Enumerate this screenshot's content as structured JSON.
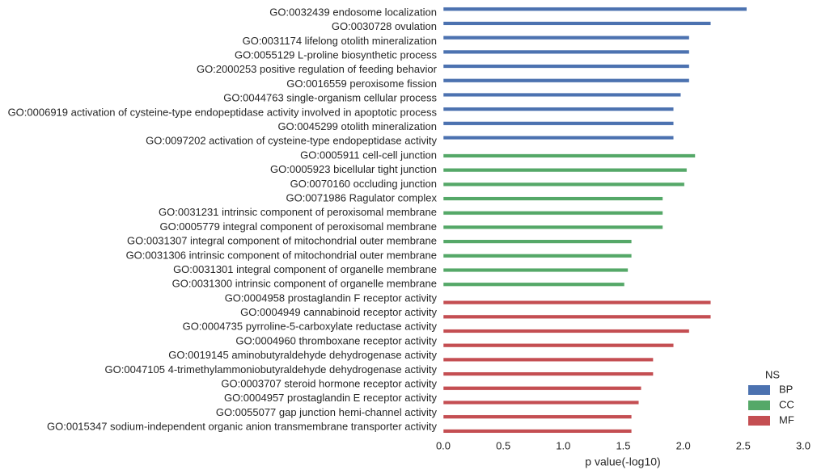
{
  "chart_data": {
    "type": "barh",
    "categories": [
      "GO:0032439 endosome localization",
      "GO:0030728 ovulation",
      "GO:0031174 lifelong otolith mineralization",
      "GO:0055129 L-proline biosynthetic process",
      "GO:2000253 positive regulation of feeding behavior",
      "GO:0016559 peroxisome fission",
      "GO:0044763 single-organism cellular process",
      "GO:0006919 activation of cysteine-type endopeptidase activity involved in apoptotic process",
      "GO:0045299 otolith mineralization",
      "GO:0097202 activation of cysteine-type endopeptidase activity",
      "GO:0005911 cell-cell junction",
      "GO:0005923 bicellular tight junction",
      "GO:0070160 occluding junction",
      "GO:0071986 Ragulator complex",
      "GO:0031231 intrinsic component of peroxisomal membrane",
      "GO:0005779 integral component of peroxisomal membrane",
      "GO:0031307 integral component of mitochondrial outer membrane",
      "GO:0031306 intrinsic component of mitochondrial outer membrane",
      "GO:0031301 integral component of organelle membrane",
      "GO:0031300 intrinsic component of organelle membrane",
      "GO:0004958 prostaglandin F receptor activity",
      "GO:0004949 cannabinoid receptor activity",
      "GO:0004735 pyrroline-5-carboxylate reductase activity",
      "GO:0004960 thromboxane receptor activity",
      "GO:0019145 aminobutyraldehyde dehydrogenase activity",
      "GO:0047105 4-trimethylammoniobutyraldehyde dehydrogenase activity",
      "GO:0003707 steroid hormone receptor activity",
      "GO:0004957 prostaglandin E receptor activity",
      "GO:0055077 gap junction hemi-channel activity",
      "GO:0015347 sodium-independent organic anion transmembrane transporter activity"
    ],
    "series": [
      {
        "name": "BP",
        "color": "#4c72b0",
        "values": [
          2.53,
          2.23,
          2.05,
          2.05,
          2.05,
          2.05,
          1.98,
          1.92,
          1.92,
          1.92,
          null,
          null,
          null,
          null,
          null,
          null,
          null,
          null,
          null,
          null,
          null,
          null,
          null,
          null,
          null,
          null,
          null,
          null,
          null,
          null
        ]
      },
      {
        "name": "CC",
        "color": "#55a868",
        "values": [
          null,
          null,
          null,
          null,
          null,
          null,
          null,
          null,
          null,
          null,
          2.1,
          2.03,
          2.01,
          1.83,
          1.83,
          1.83,
          1.57,
          1.57,
          1.54,
          1.51,
          null,
          null,
          null,
          null,
          null,
          null,
          null,
          null,
          null,
          null
        ]
      },
      {
        "name": "MF",
        "color": "#c44e52",
        "values": [
          null,
          null,
          null,
          null,
          null,
          null,
          null,
          null,
          null,
          null,
          null,
          null,
          null,
          null,
          null,
          null,
          null,
          null,
          null,
          null,
          2.23,
          2.23,
          2.05,
          1.92,
          1.75,
          1.75,
          1.65,
          1.63,
          1.57,
          1.57
        ]
      }
    ],
    "xlabel": "p value(-log10)",
    "xlim": [
      0,
      3
    ],
    "xticks": [
      {
        "value": 0,
        "label": "0.0"
      },
      0.5,
      {
        "value": 1,
        "label": "1.0"
      },
      1.5,
      {
        "value": 2,
        "label": "2.0"
      },
      2.5,
      {
        "value": 3,
        "label": "3.0"
      }
    ],
    "legend_title": "NS",
    "legend": "lower right",
    "grid": false
  }
}
